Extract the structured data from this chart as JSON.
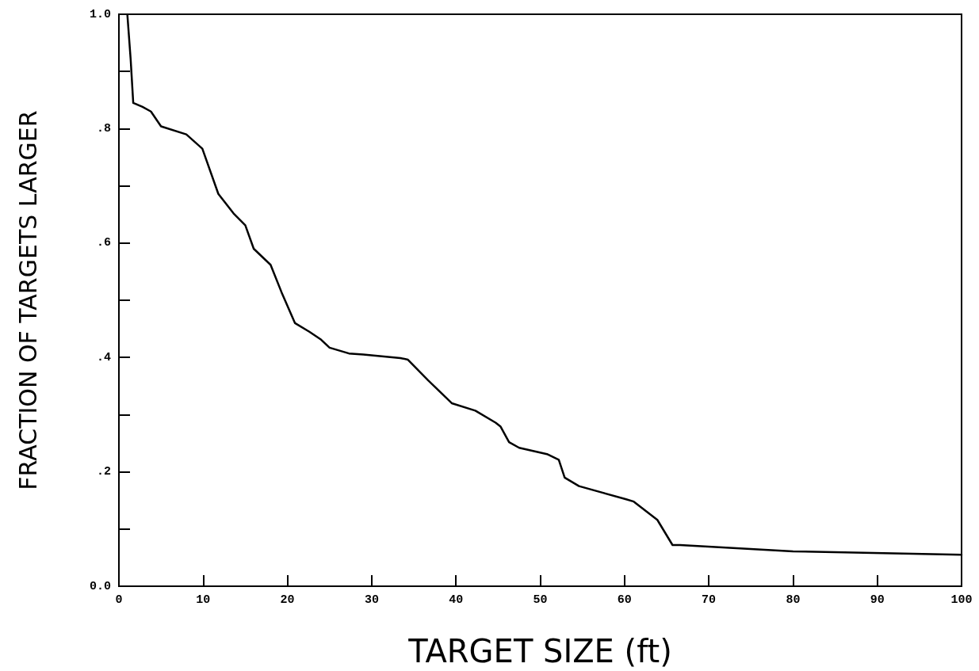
{
  "chart_data": {
    "type": "line",
    "xlabel": "TARGET SIZE (ft)",
    "ylabel": "FRACTION OF TARGETS LARGER",
    "x": [
      1,
      1.4,
      1.7,
      2.8,
      3.8,
      5,
      8,
      9.9,
      11.8,
      13.6,
      15,
      16,
      18,
      19.3,
      20.9,
      22.6,
      24,
      25,
      27.3,
      29,
      33.4,
      34.3,
      36.7,
      39.5,
      42.3,
      44.7,
      45.3,
      46.3,
      47.5,
      50.8,
      52.2,
      52.9,
      54.6,
      60.2,
      61.1,
      63.9,
      65.7,
      66.6,
      80,
      100
    ],
    "series": [
      {
        "color": "#000000",
        "values": [
          1.0,
          0.92,
          0.845,
          0.838,
          0.83,
          0.804,
          0.79,
          0.765,
          0.686,
          0.652,
          0.631,
          0.59,
          0.562,
          0.514,
          0.46,
          0.445,
          0.431,
          0.417,
          0.407,
          0.405,
          0.399,
          0.396,
          0.36,
          0.32,
          0.307,
          0.286,
          0.279,
          0.252,
          0.242,
          0.231,
          0.221,
          0.19,
          0.175,
          0.152,
          0.148,
          0.116,
          0.072,
          0.072,
          0.061,
          0.055
        ]
      }
    ],
    "xlim": [
      0,
      100
    ],
    "ylim": [
      0,
      1
    ],
    "xticks": [
      0,
      10,
      20,
      30,
      40,
      50,
      60,
      70,
      80,
      90,
      100
    ],
    "yticks": [
      {
        "value": 0,
        "label": "0.0"
      },
      {
        "value": 0.1,
        "label": null
      },
      {
        "value": 0.2,
        "label": ".2"
      },
      {
        "value": 0.3,
        "label": null
      },
      {
        "value": 0.4,
        "label": ".4"
      },
      {
        "value": 0.5,
        "label": null
      },
      {
        "value": 0.6,
        "label": ".6"
      },
      {
        "value": 0.7,
        "label": null
      },
      {
        "value": 0.8,
        "label": ".8"
      },
      {
        "value": 0.9,
        "label": null
      },
      {
        "value": 1,
        "label": "1.0"
      }
    ],
    "grid": false
  }
}
